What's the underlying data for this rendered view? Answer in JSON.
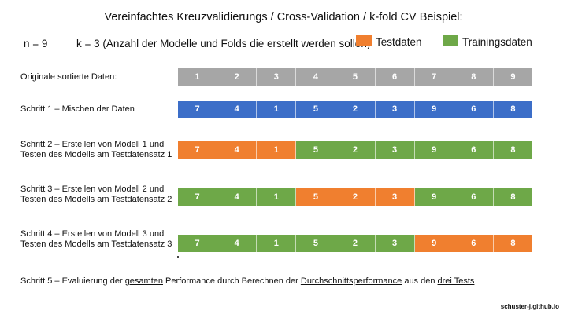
{
  "title": "Vereinfachtes Kreuzvalidierungs / Cross-Validation / k-fold CV Beispiel:",
  "params": {
    "n": "n = 9",
    "k": "k = 3 (Anzahl der Modelle und Folds die erstellt werden sollen)"
  },
  "legend": [
    {
      "label": "Testdaten",
      "color": "#f07f2f"
    },
    {
      "label": "Trainingsdaten",
      "color": "#6ea848"
    }
  ],
  "colors": {
    "original": "#a6a6a6",
    "shuffled": "#3c6ec8",
    "test": "#f07f2f",
    "train": "#6ea848"
  },
  "rows": [
    {
      "label": "Originale sortierte Daten:",
      "cells": [
        {
          "value": "1",
          "role": "original"
        },
        {
          "value": "2",
          "role": "original"
        },
        {
          "value": "3",
          "role": "original"
        },
        {
          "value": "4",
          "role": "original"
        },
        {
          "value": "5",
          "role": "original"
        },
        {
          "value": "6",
          "role": "original"
        },
        {
          "value": "7",
          "role": "original"
        },
        {
          "value": "8",
          "role": "original"
        },
        {
          "value": "9",
          "role": "original"
        }
      ]
    },
    {
      "label": "Schritt 1 – Mischen der Daten",
      "cells": [
        {
          "value": "7",
          "role": "shuffled"
        },
        {
          "value": "4",
          "role": "shuffled"
        },
        {
          "value": "1",
          "role": "shuffled"
        },
        {
          "value": "5",
          "role": "shuffled"
        },
        {
          "value": "2",
          "role": "shuffled"
        },
        {
          "value": "3",
          "role": "shuffled"
        },
        {
          "value": "9",
          "role": "shuffled"
        },
        {
          "value": "6",
          "role": "shuffled"
        },
        {
          "value": "8",
          "role": "shuffled"
        }
      ]
    },
    {
      "label": "Schritt 2 – Erstellen von Modell 1 und Testen des Modells am Testdatensatz 1",
      "cells": [
        {
          "value": "7",
          "role": "test"
        },
        {
          "value": "4",
          "role": "test"
        },
        {
          "value": "1",
          "role": "test"
        },
        {
          "value": "5",
          "role": "train"
        },
        {
          "value": "2",
          "role": "train"
        },
        {
          "value": "3",
          "role": "train"
        },
        {
          "value": "9",
          "role": "train"
        },
        {
          "value": "6",
          "role": "train"
        },
        {
          "value": "8",
          "role": "train"
        }
      ]
    },
    {
      "label": "Schritt 3 – Erstellen von Modell 2 und Testen des Modells am Testdatensatz 2",
      "cells": [
        {
          "value": "7",
          "role": "train"
        },
        {
          "value": "4",
          "role": "train"
        },
        {
          "value": "1",
          "role": "train"
        },
        {
          "value": "5",
          "role": "test"
        },
        {
          "value": "2",
          "role": "test"
        },
        {
          "value": "3",
          "role": "test"
        },
        {
          "value": "9",
          "role": "train"
        },
        {
          "value": "6",
          "role": "train"
        },
        {
          "value": "8",
          "role": "train"
        }
      ]
    },
    {
      "label": "Schritt 4 – Erstellen von  Modell 3 und Testen des Modells am Testdatensatz 3",
      "cells": [
        {
          "value": "7",
          "role": "train"
        },
        {
          "value": "4",
          "role": "train"
        },
        {
          "value": "1",
          "role": "train"
        },
        {
          "value": "5",
          "role": "train"
        },
        {
          "value": "2",
          "role": "train"
        },
        {
          "value": "3",
          "role": "train"
        },
        {
          "value": "9",
          "role": "test"
        },
        {
          "value": "6",
          "role": "test"
        },
        {
          "value": "8",
          "role": "test"
        }
      ]
    }
  ],
  "footer": {
    "p1": "Schritt 5 – Evaluierung der ",
    "u1": "gesamten",
    "p2": " Performance durch Berechnen der ",
    "u2": "Durchschnittsperformance",
    "p3": " aus den ",
    "u3": "drei Tests"
  },
  "watermark": "schuster-j.github.io"
}
